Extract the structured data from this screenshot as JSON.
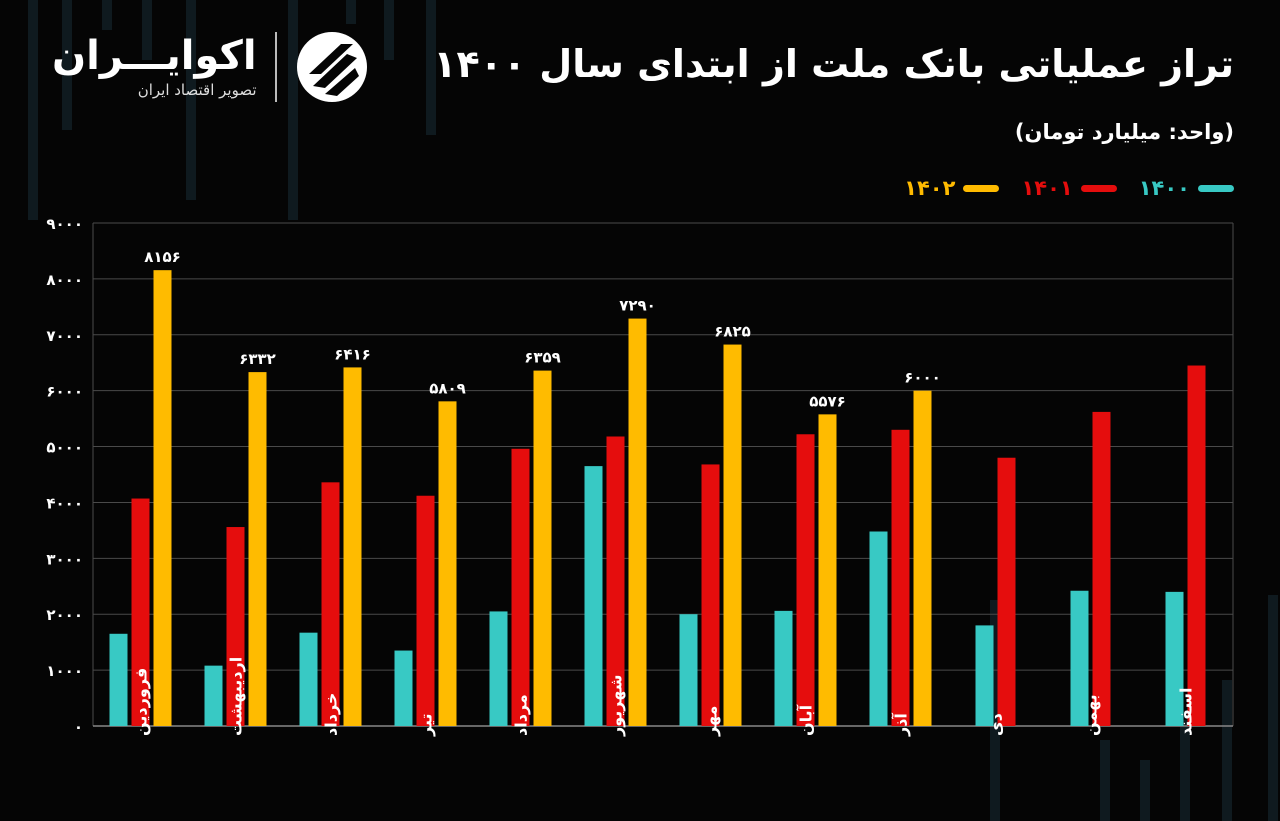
{
  "header": {
    "title": "تراز عملیاتی بانک ملت از ابتدای سال ۱۴۰۰",
    "subtitle": "(واحد: میلیارد تومان)"
  },
  "logo": {
    "name": "اکوایـــران",
    "tagline": "تصویر اقتصاد ایران"
  },
  "colors": {
    "background": "#050505",
    "s1400": "#38c9c4",
    "s1401": "#e50d0d",
    "s1402": "#ffbb00",
    "grid": "#4a4a4a"
  },
  "chart_data": {
    "type": "bar",
    "title": "تراز عملیاتی بانک ملت از ابتدای سال ۱۴۰۰",
    "ylabel": "",
    "xlabel": "",
    "ylim": [
      0,
      9000
    ],
    "yticks": [
      "۰",
      "۱۰۰۰",
      "۲۰۰۰",
      "۳۰۰۰",
      "۴۰۰۰",
      "۵۰۰۰",
      "۶۰۰۰",
      "۷۰۰۰",
      "۸۰۰۰",
      "۹۰۰۰"
    ],
    "grid": true,
    "legend_position": "top-right",
    "categories": [
      "فروردین",
      "اردیبهشت",
      "خرداد",
      "تیر",
      "مرداد",
      "شهریور",
      "مهر",
      "آبان",
      "آذر",
      "دی",
      "بهمن",
      "اسفند"
    ],
    "series": [
      {
        "name": "۱۴۰۰",
        "color": "#38c9c4",
        "values": [
          1650,
          1080,
          1670,
          1350,
          2050,
          4650,
          2000,
          2060,
          3480,
          1800,
          2420,
          2400
        ]
      },
      {
        "name": "۱۴۰۱",
        "color": "#e50d0d",
        "values": [
          4070,
          3560,
          4360,
          4120,
          4960,
          5180,
          4680,
          5220,
          5300,
          4800,
          5620,
          6450
        ]
      },
      {
        "name": "۱۴۰۲",
        "color": "#ffbb00",
        "values": [
          8156,
          6332,
          6416,
          5809,
          6359,
          7290,
          6825,
          5576,
          6000,
          null,
          null,
          null
        ],
        "labels": [
          "۸۱۵۶",
          "۶۳۳۲",
          "۶۴۱۶",
          "۵۸۰۹",
          "۶۳۵۹",
          "۷۲۹۰",
          "۶۸۲۵",
          "۵۵۷۶",
          "۶۰۰۰",
          "",
          "",
          ""
        ]
      }
    ]
  }
}
